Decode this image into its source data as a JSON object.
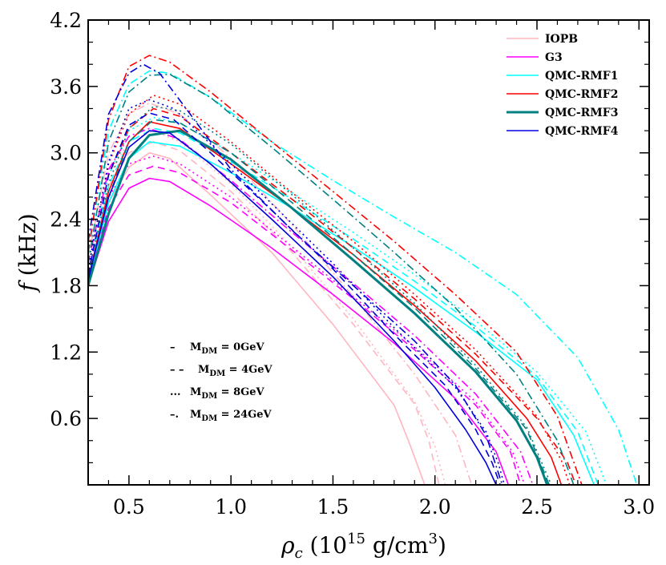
{
  "chart_data": {
    "type": "line",
    "xlabel": "ρ_c (10^15 g/cm^3)",
    "xlabel_parts": {
      "sym": "ρ",
      "sub": "c",
      "open": " (10",
      "exp": "15",
      "mid": " g/cm",
      "exp2": "3",
      "close": ")"
    },
    "ylabel_parts": {
      "sym": "f",
      "unit": " (kHz)"
    },
    "xlim": [
      0.3,
      3.05
    ],
    "ylim": [
      0.0,
      4.2
    ],
    "xticks": [
      0.5,
      1.0,
      1.5,
      2.0,
      2.5,
      3.0
    ],
    "xtick_labels": [
      "0.5",
      "1.0",
      "1.5",
      "2.0",
      "2.5",
      "3.0"
    ],
    "yticks": [
      0.6,
      1.2,
      1.8,
      2.4,
      3.0,
      3.6,
      4.2
    ],
    "ytick_labels": [
      "0.6",
      "1.2",
      "1.8",
      "2.4",
      "3.0",
      "3.6",
      "4.2"
    ],
    "legend": {
      "position": "top-right",
      "entries": [
        {
          "label": "IOPB",
          "color": "#ffb6c1",
          "width": 1.6
        },
        {
          "label": "G3",
          "color": "#ff00ff",
          "width": 1.6
        },
        {
          "label": "QMC-RMF1",
          "color": "#00ffff",
          "width": 1.6
        },
        {
          "label": "QMC-RMF2",
          "color": "#ff0000",
          "width": 1.6
        },
        {
          "label": "QMC-RMF3",
          "color": "#008080",
          "width": 3
        },
        {
          "label": "QMC-RMF4",
          "color": "#0000dd",
          "width": 1.6
        }
      ]
    },
    "style_legend": [
      {
        "dash": "–",
        "label": "M_DM = 0GeV",
        "base": "M",
        "sub": "DM",
        "eq": " = 0GeV"
      },
      {
        "dash": "– –",
        "label": "M_DM = 4GeV",
        "base": "M",
        "sub": "DM",
        "eq": " = 4GeV"
      },
      {
        "dash": "...",
        "label": "M_DM = 8GeV",
        "base": "M",
        "sub": "DM",
        "eq": " = 8GeV"
      },
      {
        "dash": "–.",
        "label": "M_DM = 24GeV",
        "base": "M",
        "sub": "DM",
        "eq": " = 24GeV"
      }
    ],
    "series": [
      {
        "name": "IOPB M_DM=0GeV",
        "color": "#ffb6c1",
        "style": "solid",
        "width": 1.6,
        "x": [
          0.3,
          0.4,
          0.5,
          0.6,
          0.7,
          0.9,
          1.2,
          1.5,
          1.8,
          1.87,
          1.95
        ],
        "y": [
          1.8,
          2.55,
          2.87,
          3.0,
          2.95,
          2.62,
          2.1,
          1.45,
          0.72,
          0.4,
          0.0
        ]
      },
      {
        "name": "IOPB M_DM=4GeV",
        "color": "#ffb6c1",
        "style": "dashed",
        "width": 1.6,
        "x": [
          0.3,
          0.4,
          0.5,
          0.62,
          0.75,
          1.0,
          1.3,
          1.6,
          1.9,
          1.97,
          2.02
        ],
        "y": [
          1.85,
          2.7,
          3.0,
          3.1,
          3.02,
          2.65,
          2.1,
          1.45,
          0.73,
          0.4,
          0.0
        ]
      },
      {
        "name": "IOPB M_DM=8GeV",
        "color": "#ffb6c1",
        "style": "dotted",
        "width": 1.6,
        "x": [
          0.3,
          0.4,
          0.5,
          0.62,
          0.75,
          1.0,
          1.3,
          1.6,
          1.9,
          2.0,
          2.05
        ],
        "y": [
          1.9,
          2.8,
          3.1,
          3.2,
          3.1,
          2.72,
          2.15,
          1.5,
          0.75,
          0.35,
          0.0
        ]
      },
      {
        "name": "IOPB M_DM=24GeV",
        "color": "#ffb6c1",
        "style": "dashdot",
        "width": 1.6,
        "x": [
          0.3,
          0.4,
          0.5,
          0.6,
          0.75,
          1.0,
          1.3,
          1.6,
          1.9,
          2.1,
          2.18
        ],
        "y": [
          2.05,
          3.0,
          3.35,
          3.45,
          3.35,
          2.95,
          2.35,
          1.7,
          1.0,
          0.45,
          0.0
        ]
      },
      {
        "name": "G3 M_DM=0GeV",
        "color": "#ff00ff",
        "style": "solid",
        "width": 1.6,
        "x": [
          0.3,
          0.4,
          0.5,
          0.6,
          0.7,
          0.9,
          1.2,
          1.5,
          1.8,
          2.1,
          2.3,
          2.36
        ],
        "y": [
          1.8,
          2.38,
          2.68,
          2.77,
          2.74,
          2.52,
          2.14,
          1.72,
          1.28,
          0.78,
          0.3,
          0.0
        ]
      },
      {
        "name": "G3 M_DM=4GeV",
        "color": "#ff00ff",
        "style": "dashed",
        "width": 1.6,
        "x": [
          0.3,
          0.4,
          0.5,
          0.62,
          0.75,
          1.0,
          1.3,
          1.6,
          1.9,
          2.2,
          2.37,
          2.42
        ],
        "y": [
          1.85,
          2.5,
          2.8,
          2.88,
          2.82,
          2.55,
          2.12,
          1.68,
          1.22,
          0.72,
          0.3,
          0.0
        ]
      },
      {
        "name": "G3 M_DM=8GeV",
        "color": "#ff00ff",
        "style": "dotted",
        "width": 1.6,
        "x": [
          0.3,
          0.4,
          0.5,
          0.62,
          0.75,
          1.0,
          1.3,
          1.6,
          1.9,
          2.2,
          2.38,
          2.44
        ],
        "y": [
          1.9,
          2.6,
          2.9,
          2.97,
          2.9,
          2.6,
          2.15,
          1.7,
          1.25,
          0.75,
          0.3,
          0.0
        ]
      },
      {
        "name": "G3 M_DM=24GeV",
        "color": "#ff00ff",
        "style": "dashdot",
        "width": 1.6,
        "x": [
          0.3,
          0.4,
          0.5,
          0.6,
          0.75,
          1.0,
          1.3,
          1.6,
          1.9,
          2.2,
          2.42,
          2.48
        ],
        "y": [
          2.0,
          2.85,
          3.15,
          3.22,
          3.12,
          2.75,
          2.28,
          1.82,
          1.35,
          0.82,
          0.3,
          0.0
        ]
      },
      {
        "name": "QMC-RMF1 M_DM=0GeV",
        "color": "#00ffff",
        "style": "solid",
        "width": 1.6,
        "x": [
          0.3,
          0.4,
          0.5,
          0.6,
          0.75,
          1.0,
          1.3,
          1.6,
          1.9,
          2.2,
          2.5,
          2.68,
          2.78
        ],
        "y": [
          1.85,
          2.55,
          2.95,
          3.1,
          3.06,
          2.82,
          2.5,
          2.15,
          1.78,
          1.38,
          0.95,
          0.45,
          0.0
        ]
      },
      {
        "name": "QMC-RMF1 M_DM=4GeV",
        "color": "#00ffff",
        "style": "dashed",
        "width": 1.6,
        "x": [
          0.3,
          0.4,
          0.5,
          0.62,
          0.75,
          1.0,
          1.3,
          1.6,
          1.9,
          2.2,
          2.5,
          2.7,
          2.8
        ],
        "y": [
          1.9,
          2.7,
          3.1,
          3.22,
          3.18,
          2.92,
          2.58,
          2.22,
          1.84,
          1.43,
          0.98,
          0.48,
          0.0
        ]
      },
      {
        "name": "QMC-RMF1 M_DM=8GeV",
        "color": "#00ffff",
        "style": "dotted",
        "width": 1.6,
        "x": [
          0.3,
          0.4,
          0.5,
          0.62,
          0.75,
          1.0,
          1.3,
          1.6,
          1.9,
          2.2,
          2.5,
          2.74,
          2.84
        ],
        "y": [
          1.95,
          2.8,
          3.2,
          3.32,
          3.27,
          3.0,
          2.64,
          2.28,
          1.9,
          1.48,
          1.02,
          0.48,
          0.0
        ]
      },
      {
        "name": "QMC-RMF1 M_DM=24GeV",
        "color": "#00ffff",
        "style": "dashdot",
        "width": 1.6,
        "x": [
          0.3,
          0.4,
          0.5,
          0.6,
          0.7,
          0.9,
          1.2,
          1.5,
          1.8,
          2.1,
          2.4,
          2.7,
          2.9,
          2.99
        ],
        "y": [
          2.1,
          3.2,
          3.62,
          3.74,
          3.72,
          3.5,
          3.1,
          2.75,
          2.42,
          2.1,
          1.72,
          1.15,
          0.5,
          0.0
        ]
      },
      {
        "name": "QMC-RMF2 M_DM=0GeV",
        "color": "#ff0000",
        "style": "solid",
        "width": 1.6,
        "x": [
          0.3,
          0.4,
          0.5,
          0.6,
          0.75,
          1.0,
          1.3,
          1.6,
          1.9,
          2.2,
          2.45,
          2.57,
          2.62
        ],
        "y": [
          1.85,
          2.65,
          3.1,
          3.28,
          3.22,
          2.9,
          2.5,
          2.08,
          1.62,
          1.12,
          0.6,
          0.25,
          0.0
        ]
      },
      {
        "name": "QMC-RMF2 M_DM=4GeV",
        "color": "#ff0000",
        "style": "dashed",
        "width": 1.6,
        "x": [
          0.3,
          0.4,
          0.5,
          0.62,
          0.75,
          1.0,
          1.3,
          1.6,
          1.9,
          2.2,
          2.5,
          2.65,
          2.69
        ],
        "y": [
          1.9,
          2.8,
          3.22,
          3.4,
          3.33,
          3.0,
          2.58,
          2.14,
          1.68,
          1.18,
          0.6,
          0.2,
          0.0
        ]
      },
      {
        "name": "QMC-RMF2 M_DM=8GeV",
        "color": "#ff0000",
        "style": "dotted",
        "width": 1.6,
        "x": [
          0.3,
          0.4,
          0.5,
          0.62,
          0.75,
          1.0,
          1.3,
          1.6,
          1.9,
          2.2,
          2.5,
          2.62,
          2.66
        ],
        "y": [
          1.95,
          2.9,
          3.35,
          3.52,
          3.44,
          3.1,
          2.64,
          2.2,
          1.72,
          1.22,
          0.62,
          0.22,
          0.0
        ]
      },
      {
        "name": "QMC-RMF2 M_DM=24GeV",
        "color": "#ff0000",
        "style": "dashdot",
        "width": 1.6,
        "x": [
          0.3,
          0.4,
          0.5,
          0.6,
          0.7,
          0.9,
          1.2,
          1.5,
          1.8,
          2.1,
          2.4,
          2.6,
          2.72
        ],
        "y": [
          2.1,
          3.3,
          3.78,
          3.88,
          3.82,
          3.55,
          3.1,
          2.65,
          2.2,
          1.72,
          1.2,
          0.62,
          0.0
        ]
      },
      {
        "name": "QMC-RMF3 M_DM=0GeV",
        "color": "#008080",
        "style": "solid",
        "width": 3,
        "x": [
          0.3,
          0.4,
          0.5,
          0.6,
          0.75,
          1.0,
          1.3,
          1.6,
          1.9,
          2.2,
          2.4,
          2.5,
          2.55
        ],
        "y": [
          1.8,
          2.45,
          2.95,
          3.16,
          3.2,
          2.94,
          2.5,
          2.03,
          1.55,
          1.02,
          0.58,
          0.25,
          0.0
        ]
      },
      {
        "name": "QMC-RMF3 M_DM=4GeV",
        "color": "#008080",
        "style": "dashed",
        "width": 1.6,
        "x": [
          0.3,
          0.4,
          0.5,
          0.62,
          0.75,
          1.0,
          1.3,
          1.6,
          1.9,
          2.2,
          2.45,
          2.56
        ],
        "y": [
          1.85,
          2.6,
          3.1,
          3.3,
          3.27,
          3.0,
          2.55,
          2.08,
          1.6,
          1.05,
          0.5,
          0.0
        ]
      },
      {
        "name": "QMC-RMF3 M_DM=8GeV",
        "color": "#008080",
        "style": "dotted",
        "width": 1.6,
        "x": [
          0.3,
          0.4,
          0.5,
          0.62,
          0.75,
          1.0,
          1.3,
          1.6,
          1.9,
          2.2,
          2.45,
          2.57
        ],
        "y": [
          1.9,
          2.72,
          3.22,
          3.42,
          3.38,
          3.08,
          2.62,
          2.14,
          1.64,
          1.08,
          0.52,
          0.0
        ]
      },
      {
        "name": "QMC-RMF3 M_DM=24GeV",
        "color": "#008080",
        "style": "dashdot",
        "width": 1.6,
        "x": [
          0.3,
          0.4,
          0.5,
          0.6,
          0.7,
          0.9,
          1.2,
          1.5,
          1.8,
          2.1,
          2.4,
          2.6,
          2.68
        ],
        "y": [
          2.0,
          3.1,
          3.55,
          3.7,
          3.71,
          3.5,
          3.05,
          2.58,
          2.1,
          1.6,
          1.0,
          0.4,
          0.0
        ]
      },
      {
        "name": "QMC-RMF4 M_DM=0GeV",
        "color": "#0000dd",
        "style": "solid",
        "width": 1.6,
        "x": [
          0.3,
          0.4,
          0.5,
          0.6,
          0.7,
          0.9,
          1.2,
          1.5,
          1.8,
          2.0,
          2.15,
          2.25,
          2.3
        ],
        "y": [
          1.85,
          2.6,
          3.05,
          3.2,
          3.18,
          2.9,
          2.4,
          1.88,
          1.3,
          0.88,
          0.5,
          0.2,
          0.0
        ]
      },
      {
        "name": "QMC-RMF4 M_DM=4GeV",
        "color": "#0000dd",
        "style": "dashed",
        "width": 1.6,
        "x": [
          0.3,
          0.4,
          0.5,
          0.6,
          0.72,
          0.9,
          1.2,
          1.5,
          1.8,
          2.05,
          2.2,
          2.28,
          2.32
        ],
        "y": [
          1.9,
          2.8,
          3.25,
          3.36,
          3.3,
          3.0,
          2.48,
          1.95,
          1.36,
          0.9,
          0.5,
          0.2,
          0.0
        ]
      },
      {
        "name": "QMC-RMF4 M_DM=8GeV",
        "color": "#0000dd",
        "style": "dotted",
        "width": 1.6,
        "x": [
          0.3,
          0.4,
          0.5,
          0.6,
          0.72,
          0.9,
          1.2,
          1.5,
          1.8,
          2.1,
          2.25,
          2.31,
          2.34
        ],
        "y": [
          1.95,
          2.92,
          3.4,
          3.48,
          3.4,
          3.08,
          2.54,
          2.0,
          1.42,
          0.88,
          0.48,
          0.2,
          0.0
        ]
      },
      {
        "name": "QMC-RMF4 M_DM=24GeV",
        "color": "#0000dd",
        "style": "dashdot",
        "width": 1.6,
        "x": [
          0.3,
          0.4,
          0.5,
          0.57,
          0.65,
          0.8,
          1.0,
          1.3,
          1.6,
          1.9,
          2.1,
          2.25,
          2.33
        ],
        "y": [
          2.2,
          3.35,
          3.72,
          3.8,
          3.72,
          3.35,
          2.85,
          2.3,
          1.8,
          1.3,
          0.9,
          0.45,
          0.0
        ]
      }
    ]
  }
}
